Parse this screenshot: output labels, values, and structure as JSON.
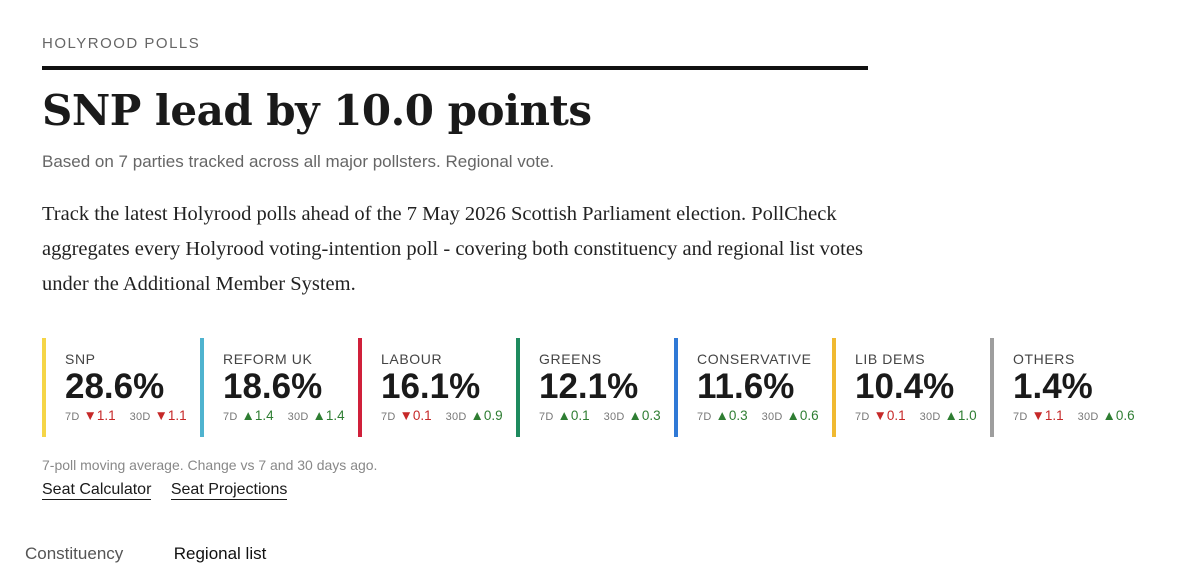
{
  "header": {
    "kicker": "HOLYROOD POLLS",
    "title": "SNP lead by 10.0 points",
    "subtitle": "Based on 7 parties tracked across all major pollsters. Regional vote."
  },
  "intro": "Track the latest Holyrood polls ahead of the 7 May 2026 Scottish Parliament election. PollCheck aggregates every Holyrood voting-intention poll - covering both constituency and regional list votes under the Additional Member System.",
  "change_labels": {
    "d7": "7D",
    "d30": "30D"
  },
  "parties": [
    {
      "name": "SNP",
      "value": "28.6%",
      "color": "#f5d547",
      "d7": {
        "dir": "down",
        "glyph": "▼",
        "val": "1.1"
      },
      "d30": {
        "dir": "down",
        "glyph": "▼",
        "val": "1.1"
      }
    },
    {
      "name": "REFORM UK",
      "value": "18.6%",
      "color": "#4fb3cf",
      "d7": {
        "dir": "up",
        "glyph": "▲",
        "val": "1.4"
      },
      "d30": {
        "dir": "up",
        "glyph": "▲",
        "val": "1.4"
      }
    },
    {
      "name": "LABOUR",
      "value": "16.1%",
      "color": "#d0203a",
      "d7": {
        "dir": "down",
        "glyph": "▼",
        "val": "0.1"
      },
      "d30": {
        "dir": "up",
        "glyph": "▲",
        "val": "0.9"
      }
    },
    {
      "name": "GREENS",
      "value": "12.1%",
      "color": "#1e8a5e",
      "d7": {
        "dir": "up",
        "glyph": "▲",
        "val": "0.1"
      },
      "d30": {
        "dir": "up",
        "glyph": "▲",
        "val": "0.3"
      }
    },
    {
      "name": "CONSERVATIVE",
      "value": "11.6%",
      "color": "#2f79d6",
      "d7": {
        "dir": "up",
        "glyph": "▲",
        "val": "0.3"
      },
      "d30": {
        "dir": "up",
        "glyph": "▲",
        "val": "0.6"
      }
    },
    {
      "name": "LIB DEMS",
      "value": "10.4%",
      "color": "#f0b931",
      "d7": {
        "dir": "down",
        "glyph": "▼",
        "val": "0.1"
      },
      "d30": {
        "dir": "up",
        "glyph": "▲",
        "val": "1.0"
      }
    },
    {
      "name": "OTHERS",
      "value": "1.4%",
      "color": "#9e9e9e",
      "d7": {
        "dir": "down",
        "glyph": "▼",
        "val": "1.1"
      },
      "d30": {
        "dir": "up",
        "glyph": "▲",
        "val": "0.6"
      }
    }
  ],
  "footnote": "7-poll moving average. Change vs 7 and 30 days ago.",
  "links": [
    "Seat Calculator",
    "Seat Projections"
  ],
  "tabs": [
    {
      "label": "Constituency",
      "active": false
    },
    {
      "label": "Regional list",
      "active": true
    }
  ]
}
